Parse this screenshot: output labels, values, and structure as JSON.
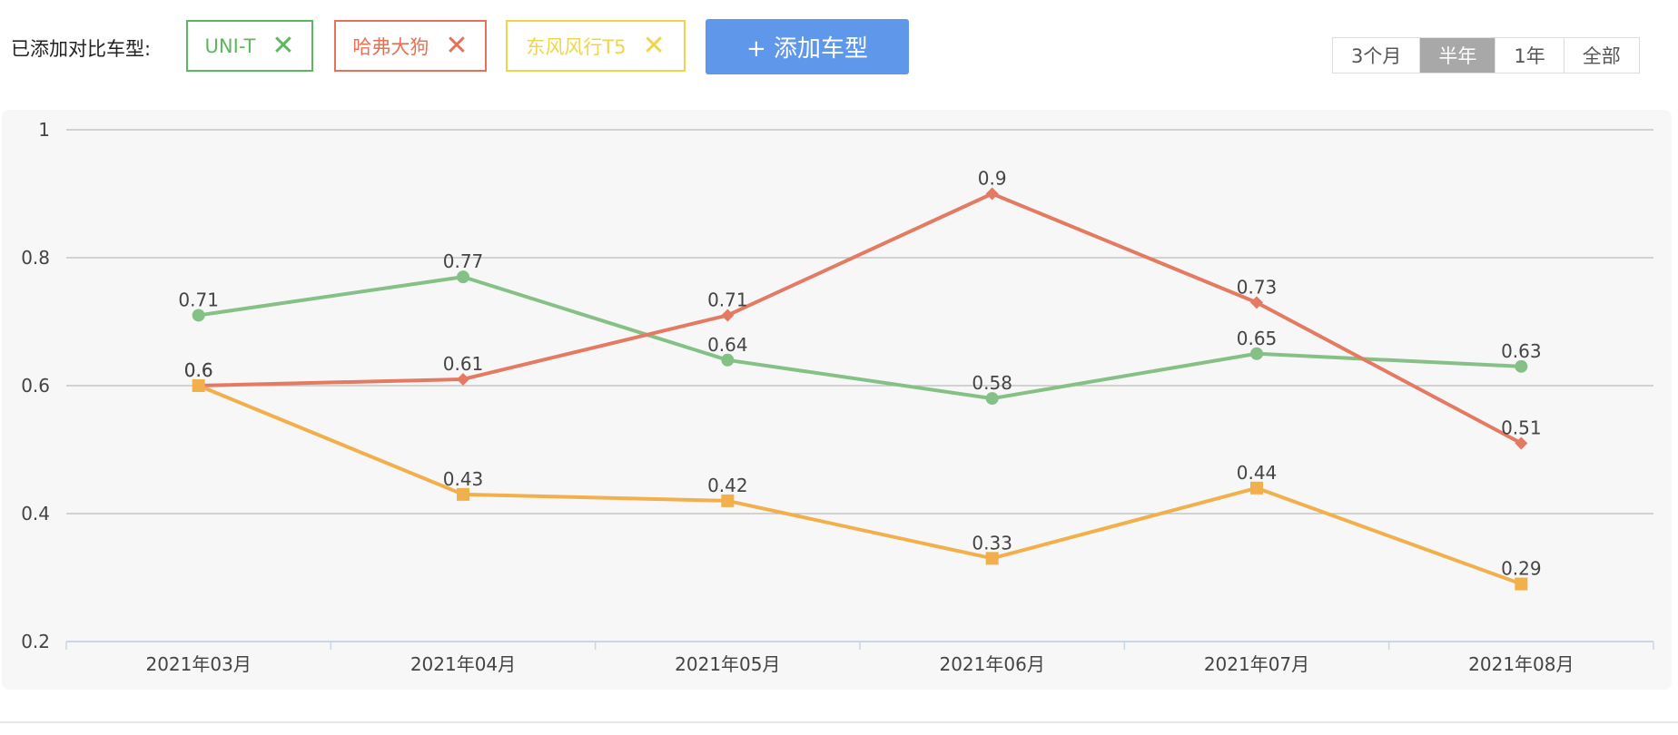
{
  "toolbar": {
    "label": "已添加对比车型:",
    "add_button": "+ 添加车型",
    "tag_colors": [
      "#5cb85c",
      "#e57254",
      "#f0d54a"
    ],
    "periods": [
      "3个月",
      "半年",
      "1年",
      "全部"
    ],
    "selected_period": 1
  },
  "chart_data": {
    "type": "line",
    "categories": [
      "2021年03月",
      "2021年04月",
      "2021年05月",
      "2021年06月",
      "2021年07月",
      "2021年08月"
    ],
    "series": [
      {
        "name": "UNI-T",
        "color": "#85c187",
        "marker": "circle",
        "values": [
          0.71,
          0.77,
          0.64,
          0.58,
          0.65,
          0.63
        ]
      },
      {
        "name": "哈弗大狗",
        "color": "#e57a62",
        "marker": "diamond",
        "values": [
          0.6,
          0.61,
          0.71,
          0.9,
          0.73,
          0.51
        ]
      },
      {
        "name": "东风风行T5",
        "color": "#f2b04c",
        "marker": "square",
        "values": [
          0.6,
          0.43,
          0.42,
          0.33,
          0.44,
          0.29
        ]
      }
    ],
    "ylim": [
      0.2,
      1
    ],
    "yticks": [
      0.2,
      0.4,
      0.6,
      0.8,
      1
    ],
    "grid": true
  }
}
